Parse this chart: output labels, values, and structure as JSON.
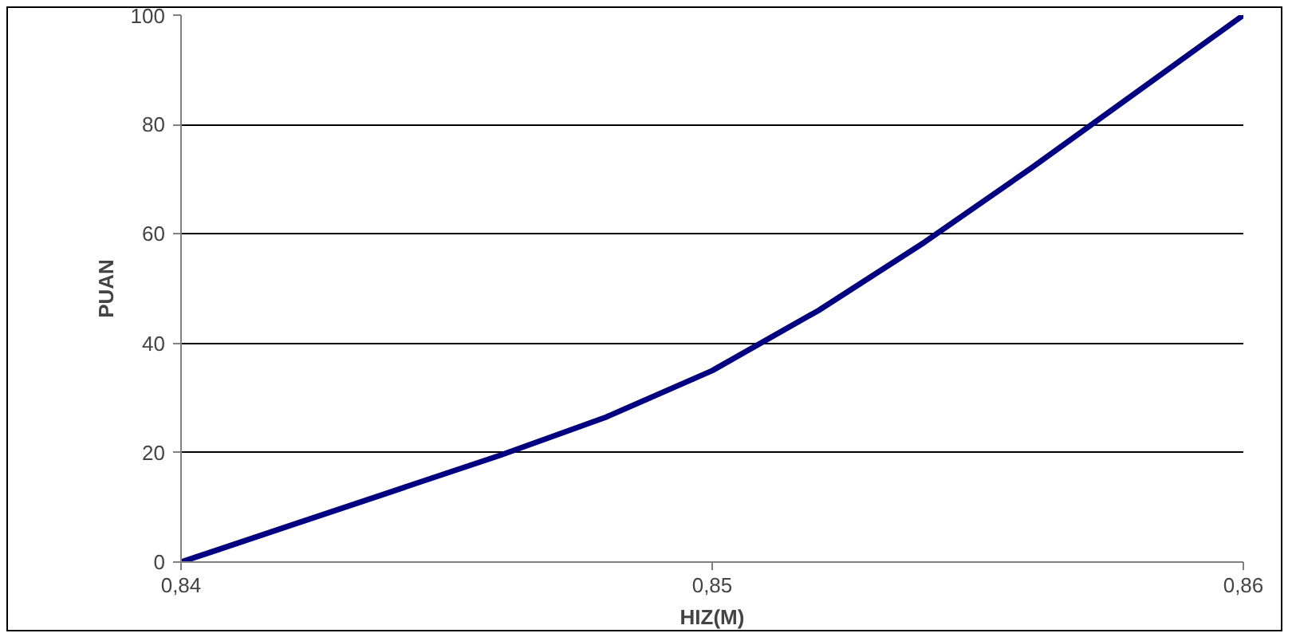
{
  "chart_data": {
    "type": "line",
    "xlabel": "HIZ(M)",
    "ylabel": "PUAN",
    "x": [
      0.84,
      0.842,
      0.844,
      0.846,
      0.848,
      0.85,
      0.852,
      0.854,
      0.856,
      0.858,
      0.86
    ],
    "series": [
      {
        "color": "#000080",
        "values": [
          0,
          6.5,
          13,
          19.5,
          26.5,
          35,
          46,
          58.5,
          72,
          86,
          100
        ]
      }
    ],
    "xlim": [
      0.84,
      0.86
    ],
    "xticks": [
      {
        "value": 0.84,
        "label": "0,84"
      },
      {
        "value": 0.85,
        "label": "0,85"
      },
      {
        "value": 0.86,
        "label": "0,86"
      }
    ],
    "ylim": [
      0,
      100
    ],
    "yticks": [
      0,
      20,
      40,
      60,
      80,
      100
    ],
    "grid": "y",
    "marker": "none",
    "line_style": "solid"
  }
}
